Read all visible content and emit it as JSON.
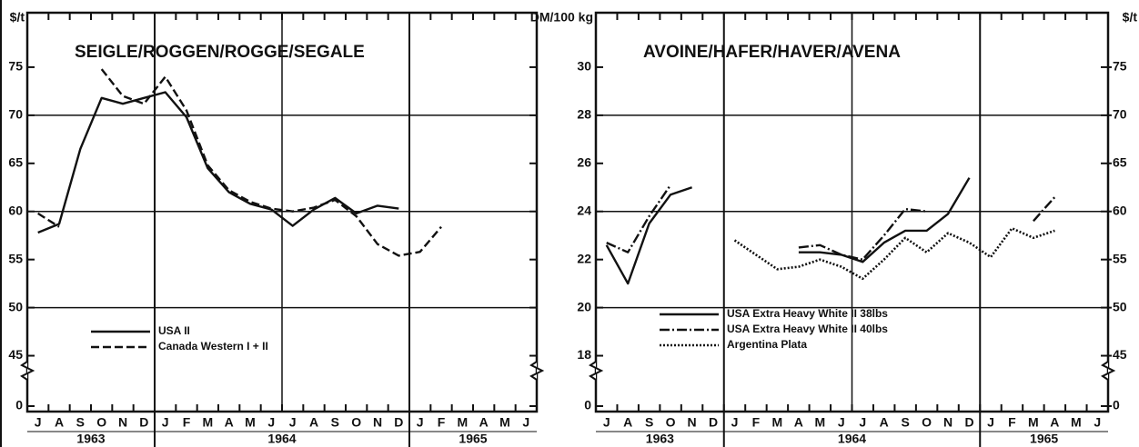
{
  "chart_data": [
    {
      "type": "line",
      "title": "SEIGLE/ROGGEN/ROGGE/SEGALE",
      "y_label": "$/t",
      "categories": [
        "J",
        "A",
        "S",
        "O",
        "N",
        "D",
        "J",
        "F",
        "M",
        "A",
        "M",
        "J",
        "J",
        "A",
        "S",
        "O",
        "N",
        "D",
        "J",
        "F",
        "M",
        "A",
        "M",
        "J"
      ],
      "years": [
        "1963",
        "1964",
        "1965"
      ],
      "ylim": [
        0,
        80
      ],
      "y_break": [
        0,
        42.5
      ],
      "yticks": [
        0,
        45,
        50,
        55,
        60,
        65,
        70,
        75
      ],
      "grid": true,
      "series": [
        {
          "name": "USA II",
          "color": "#111111",
          "style": "solid",
          "values": [
            57.8,
            58.7,
            66.5,
            71.8,
            71.2,
            71.8,
            72.4,
            69.8,
            64.5,
            62.0,
            60.8,
            60.2,
            58.5,
            60.2,
            61.4,
            59.8,
            60.6,
            60.3,
            null,
            null,
            null,
            null,
            null,
            null
          ]
        },
        {
          "name": "Canada Western I + II",
          "color": "#111111",
          "style": "dashed",
          "values": [
            59.8,
            58.4,
            null,
            74.8,
            72.0,
            71.2,
            74.0,
            70.5,
            64.8,
            62.2,
            61.0,
            60.3,
            60.0,
            60.4,
            61.2,
            59.5,
            56.6,
            55.4,
            55.8,
            58.4,
            null,
            null,
            null,
            null
          ]
        }
      ]
    },
    {
      "type": "line",
      "title": "AVOINE/HAFER/HAVER/AVENA",
      "y_label": "DM/100 kg",
      "y2_label": "$/t",
      "categories": [
        "J",
        "A",
        "S",
        "O",
        "N",
        "D",
        "J",
        "F",
        "M",
        "A",
        "M",
        "J",
        "J",
        "A",
        "S",
        "O",
        "N",
        "D",
        "J",
        "F",
        "M",
        "A",
        "M",
        "J"
      ],
      "years": [
        "1963",
        "1964",
        "1965"
      ],
      "ylim": [
        0,
        32
      ],
      "y_break": [
        0,
        17
      ],
      "yticks": [
        0,
        18,
        20,
        22,
        24,
        26,
        28,
        30
      ],
      "grid": true,
      "y2lim": [
        0,
        80
      ],
      "y2_break": [
        0,
        42.5
      ],
      "y2ticks": [
        0,
        45,
        50,
        55,
        60,
        65,
        70,
        75
      ],
      "series": [
        {
          "name": "USA Extra Heavy White II 38lbs",
          "color": "#111111",
          "style": "solid",
          "values": [
            22.6,
            21.0,
            23.5,
            24.7,
            25.0,
            null,
            null,
            null,
            null,
            22.3,
            22.3,
            22.2,
            21.9,
            22.7,
            23.2,
            23.2,
            23.9,
            25.4,
            null,
            null,
            null,
            null,
            null,
            null
          ]
        },
        {
          "name": "USA Extra Heavy White II 40lbs",
          "color": "#111111",
          "style": "dashdot",
          "values": [
            22.7,
            22.3,
            23.8,
            25.1,
            null,
            null,
            null,
            null,
            null,
            22.5,
            22.6,
            22.2,
            22.0,
            23.0,
            24.1,
            24.0,
            null,
            null,
            null,
            null,
            23.6,
            24.6,
            null,
            null
          ]
        },
        {
          "name": "Argentina Plata",
          "color": "#111111",
          "style": "dotted",
          "values": [
            null,
            null,
            null,
            null,
            null,
            null,
            22.8,
            22.2,
            21.6,
            21.7,
            22.0,
            21.7,
            21.2,
            22.0,
            22.9,
            22.3,
            23.1,
            22.7,
            22.1,
            23.3,
            22.9,
            23.2,
            null,
            null
          ]
        }
      ]
    }
  ]
}
